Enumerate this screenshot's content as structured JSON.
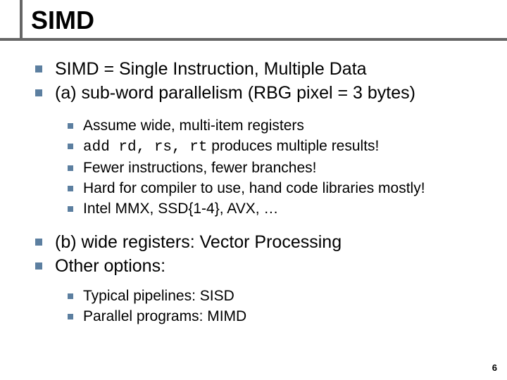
{
  "title": "SIMD",
  "bullets": {
    "l1a": "SIMD = Single Instruction, Multiple Data",
    "l1b": "(a) sub-word parallelism (RBG pixel = 3 bytes)",
    "l2a": "Assume wide, multi-item registers",
    "l2b_pre": "add rd, rs, rt",
    "l2b_post": " produces multiple results!",
    "l2c": "Fewer instructions, fewer branches!",
    "l2d": "Hard for compiler to use, hand code libraries mostly!",
    "l2e": "Intel MMX, SSD{1-4}, AVX, …",
    "l1c": "(b) wide registers: Vector Processing",
    "l1d": "Other options:",
    "l2f": "Typical pipelines: SISD",
    "l2g": "Parallel programs: MIMD"
  },
  "page_number": "6",
  "colors": {
    "bullet": "#5c7fa0",
    "rule": "#666666",
    "text": "#000000",
    "background": "#ffffff"
  }
}
